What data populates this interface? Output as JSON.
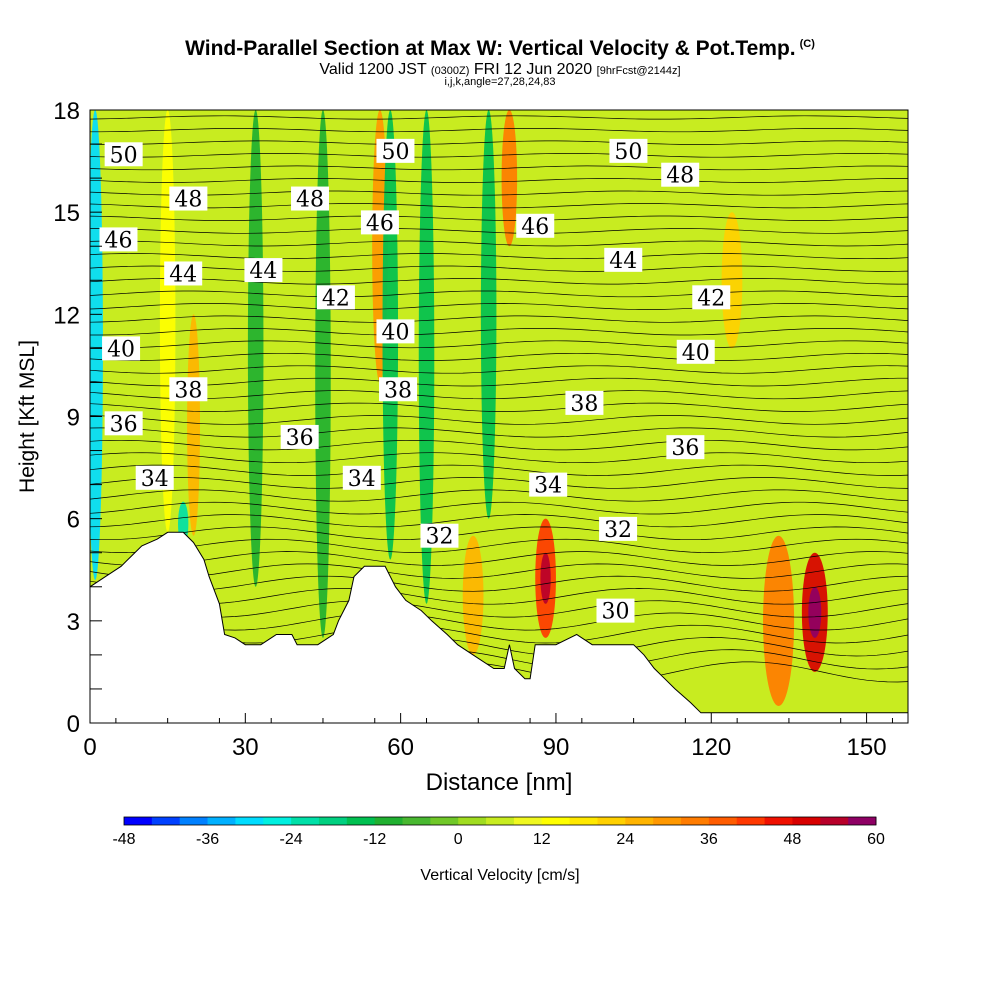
{
  "header": {
    "title": "Wind-Parallel Section at Max W: Vertical Velocity & Pot.Temp.",
    "copyright": "(C)",
    "valid_main": "Valid 1200 JST",
    "valid_zulu": "(0300Z)",
    "valid_date": "FRI 12 Jun 2020",
    "forecast_tag": "[9hrFcst@2144z]",
    "indices": "i,j,k,angle=27,28,24,83"
  },
  "chart_data": {
    "type": "heatmap",
    "xlabel": "Distance [nm]",
    "ylabel": "Height [Kft MSL]",
    "xlim": [
      0,
      158
    ],
    "ylim": [
      0,
      18
    ],
    "x_ticks": [
      0,
      30,
      60,
      90,
      120,
      150
    ],
    "y_ticks": [
      0,
      3,
      6,
      9,
      12,
      15,
      18
    ],
    "colorbar": {
      "label": "Vertical Velocity [cm/s]",
      "tick_values": [
        -48,
        -36,
        -24,
        -12,
        0,
        12,
        24,
        36,
        48,
        60
      ],
      "min": -48,
      "max": 60,
      "step": 4,
      "colors": [
        "#0000ff",
        "#0040ff",
        "#0080ff",
        "#00b0ff",
        "#00dcff",
        "#00f0e0",
        "#00e0a8",
        "#00d080",
        "#00c050",
        "#20b030",
        "#48b830",
        "#70c828",
        "#a0dc20",
        "#c8ec20",
        "#f0f820",
        "#ffff00",
        "#ffe800",
        "#ffd000",
        "#ffb400",
        "#ff9800",
        "#ff7c00",
        "#ff5c00",
        "#ff3800",
        "#f01000",
        "#d80000",
        "#b8002a",
        "#8e0064"
      ]
    },
    "terrain_profile": [
      {
        "x": 0,
        "z": 4.0
      },
      {
        "x": 3,
        "z": 4.3
      },
      {
        "x": 6,
        "z": 4.6
      },
      {
        "x": 8,
        "z": 4.9
      },
      {
        "x": 10,
        "z": 5.2
      },
      {
        "x": 13,
        "z": 5.4
      },
      {
        "x": 15,
        "z": 5.6
      },
      {
        "x": 18,
        "z": 5.6
      },
      {
        "x": 20,
        "z": 5.3
      },
      {
        "x": 22,
        "z": 4.8
      },
      {
        "x": 23,
        "z": 4.3
      },
      {
        "x": 25,
        "z": 3.5
      },
      {
        "x": 26,
        "z": 2.6
      },
      {
        "x": 28,
        "z": 2.5
      },
      {
        "x": 30,
        "z": 2.3
      },
      {
        "x": 33,
        "z": 2.3
      },
      {
        "x": 36,
        "z": 2.6
      },
      {
        "x": 39,
        "z": 2.6
      },
      {
        "x": 40,
        "z": 2.3
      },
      {
        "x": 44,
        "z": 2.3
      },
      {
        "x": 47,
        "z": 2.6
      },
      {
        "x": 48,
        "z": 3.0
      },
      {
        "x": 50,
        "z": 3.6
      },
      {
        "x": 51,
        "z": 4.3
      },
      {
        "x": 53,
        "z": 4.6
      },
      {
        "x": 57,
        "z": 4.6
      },
      {
        "x": 59,
        "z": 4.0
      },
      {
        "x": 61,
        "z": 3.6
      },
      {
        "x": 64,
        "z": 3.3
      },
      {
        "x": 66,
        "z": 3.0
      },
      {
        "x": 69,
        "z": 2.6
      },
      {
        "x": 71,
        "z": 2.3
      },
      {
        "x": 74,
        "z": 2.0
      },
      {
        "x": 78,
        "z": 1.6
      },
      {
        "x": 80,
        "z": 1.6
      },
      {
        "x": 81,
        "z": 2.3
      },
      {
        "x": 82,
        "z": 1.6
      },
      {
        "x": 84,
        "z": 1.3
      },
      {
        "x": 85,
        "z": 1.3
      },
      {
        "x": 86,
        "z": 2.3
      },
      {
        "x": 90,
        "z": 2.3
      },
      {
        "x": 94,
        "z": 2.6
      },
      {
        "x": 97,
        "z": 2.3
      },
      {
        "x": 105,
        "z": 2.3
      },
      {
        "x": 107,
        "z": 2.0
      },
      {
        "x": 109,
        "z": 1.6
      },
      {
        "x": 111,
        "z": 1.3
      },
      {
        "x": 113,
        "z": 1.0
      },
      {
        "x": 116,
        "z": 0.6
      },
      {
        "x": 118,
        "z": 0.3
      },
      {
        "x": 120,
        "z": 0.3
      },
      {
        "x": 125,
        "z": 0.3
      },
      {
        "x": 158,
        "z": 0.3
      }
    ],
    "velocity_bands": [
      {
        "x": 1,
        "w": 3,
        "zlo": 4.2,
        "zhi": 18,
        "value": -30
      },
      {
        "x": 15,
        "w": 3,
        "zlo": 5.6,
        "zhi": 18,
        "value": 15
      },
      {
        "x": 18,
        "w": 2,
        "zlo": 5.2,
        "zhi": 6.5,
        "value": -24
      },
      {
        "x": 20,
        "w": 2.5,
        "zlo": 5.5,
        "zhi": 12,
        "value": 24
      },
      {
        "x": 32,
        "w": 3,
        "zlo": 4.0,
        "zhi": 18,
        "value": -12
      },
      {
        "x": 45,
        "w": 3,
        "zlo": 2.5,
        "zhi": 18,
        "value": -12
      },
      {
        "x": 56,
        "w": 3,
        "zlo": 10,
        "zhi": 18,
        "value": 28
      },
      {
        "x": 58,
        "w": 3,
        "zlo": 4.8,
        "zhi": 18,
        "value": -14
      },
      {
        "x": 65,
        "w": 3,
        "zlo": 3.5,
        "zhi": 18,
        "value": -14
      },
      {
        "x": 74,
        "w": 4,
        "zlo": 2.0,
        "zhi": 5.5,
        "value": 24
      },
      {
        "x": 77,
        "w": 3,
        "zlo": 6.0,
        "zhi": 18,
        "value": -14
      },
      {
        "x": 81,
        "w": 3,
        "zlo": 14,
        "zhi": 18,
        "value": 32
      },
      {
        "x": 88,
        "w": 4,
        "zlo": 2.5,
        "zhi": 6.0,
        "value": 40
      },
      {
        "x": 88,
        "w": 2,
        "zlo": 3.5,
        "zhi": 5.0,
        "value": 52
      },
      {
        "x": 124,
        "w": 4,
        "zlo": 11,
        "zhi": 15,
        "value": 22
      },
      {
        "x": 133,
        "w": 6,
        "zlo": 0.5,
        "zhi": 5.5,
        "value": 32
      },
      {
        "x": 140,
        "w": 5,
        "zlo": 1.5,
        "zhi": 5.0,
        "value": 48
      },
      {
        "x": 140,
        "w": 2.5,
        "zlo": 2.5,
        "zhi": 4.0,
        "value": 60
      }
    ],
    "theta_labels": [
      {
        "text": "50",
        "x": 6.5,
        "z": 16.7
      },
      {
        "text": "50",
        "x": 59,
        "z": 16.8
      },
      {
        "text": "50",
        "x": 104,
        "z": 16.8
      },
      {
        "text": "48",
        "x": 19,
        "z": 15.4
      },
      {
        "text": "48",
        "x": 42.5,
        "z": 15.4
      },
      {
        "text": "48",
        "x": 114,
        "z": 16.1
      },
      {
        "text": "46",
        "x": 5.5,
        "z": 14.2
      },
      {
        "text": "46",
        "x": 56,
        "z": 14.7
      },
      {
        "text": "46",
        "x": 86,
        "z": 14.6
      },
      {
        "text": "44",
        "x": 18,
        "z": 13.2
      },
      {
        "text": "44",
        "x": 33.5,
        "z": 13.3
      },
      {
        "text": "44",
        "x": 103,
        "z": 13.6
      },
      {
        "text": "42",
        "x": 47.5,
        "z": 12.5
      },
      {
        "text": "42",
        "x": 120,
        "z": 12.5
      },
      {
        "text": "40",
        "x": 6,
        "z": 11.0
      },
      {
        "text": "40",
        "x": 59,
        "z": 11.5
      },
      {
        "text": "40",
        "x": 117,
        "z": 10.9
      },
      {
        "text": "38",
        "x": 19,
        "z": 9.8
      },
      {
        "text": "38",
        "x": 59.5,
        "z": 9.8
      },
      {
        "text": "38",
        "x": 95.5,
        "z": 9.4
      },
      {
        "text": "36",
        "x": 6.5,
        "z": 8.8
      },
      {
        "text": "36",
        "x": 40.5,
        "z": 8.4
      },
      {
        "text": "36",
        "x": 115,
        "z": 8.1
      },
      {
        "text": "34",
        "x": 12.5,
        "z": 7.2
      },
      {
        "text": "34",
        "x": 52.5,
        "z": 7.2
      },
      {
        "text": "34",
        "x": 88.5,
        "z": 7.0
      },
      {
        "text": "32",
        "x": 67.5,
        "z": 5.5
      },
      {
        "text": "32",
        "x": 102,
        "z": 5.7
      },
      {
        "text": "30",
        "x": 101.5,
        "z": 3.3
      }
    ]
  }
}
